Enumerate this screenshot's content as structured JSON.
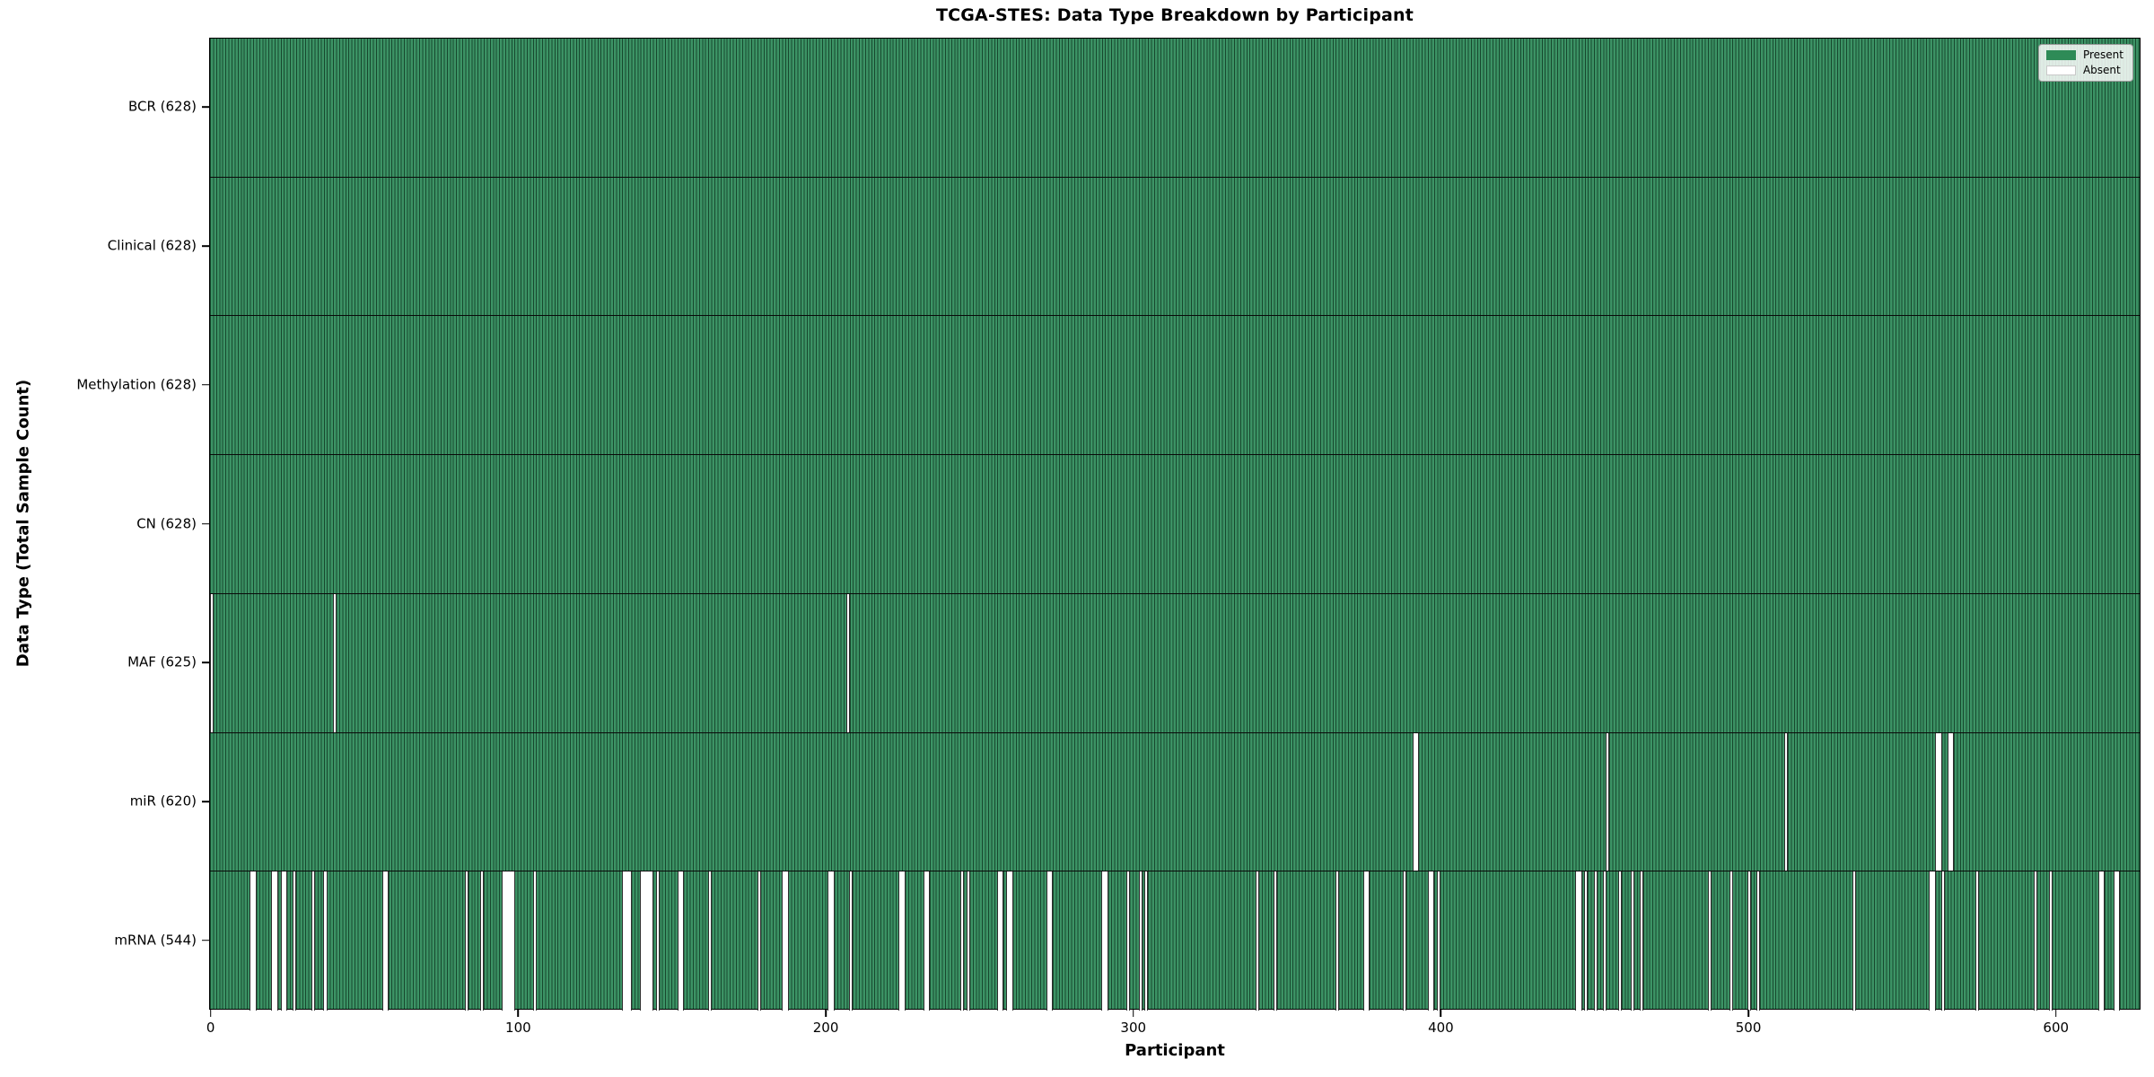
{
  "figure": {
    "title": "TCGA-STES: Data Type Breakdown by Participant",
    "xlabel": "Participant",
    "ylabel": "Data Type (Total Sample Count)"
  },
  "legend": {
    "items": [
      {
        "key": "present",
        "label": "Present",
        "color": "#2E8B57",
        "edge": "#2E8B57"
      },
      {
        "key": "absent",
        "label": "Absent",
        "color": "#FFFFFF",
        "edge": "#c8c8c8"
      }
    ]
  },
  "chart_data": {
    "type": "heatmap",
    "title": "TCGA-STES: Data Type Breakdown by Participant",
    "xlabel": "Participant",
    "ylabel": "Data Type (Total Sample Count)",
    "legend_entries": [
      "Present",
      "Absent"
    ],
    "legend_position": "upper right",
    "grid": false,
    "n_participants": 628,
    "x_axis": {
      "min": -0.5,
      "max": 627.5,
      "ticks": [
        0,
        100,
        200,
        300,
        400,
        500,
        600
      ]
    },
    "colors": {
      "present": "#2E8B57",
      "present_stripe_fill": "#3C9365",
      "bar_edge": "#17482E",
      "absent": "#FFFFFF",
      "row_separator": "#0a0a0a"
    },
    "rows": [
      {
        "key": "bcr",
        "label": "BCR (628)",
        "data_type": "BCR",
        "total_count": 628,
        "absent_participants": []
      },
      {
        "key": "clinical",
        "label": "Clinical (628)",
        "data_type": "Clinical",
        "total_count": 628,
        "absent_participants": []
      },
      {
        "key": "methylation",
        "label": "Methylation (628)",
        "data_type": "Methylation",
        "total_count": 628,
        "absent_participants": []
      },
      {
        "key": "cn",
        "label": "CN (628)",
        "data_type": "CN",
        "total_count": 628,
        "absent_participants": []
      },
      {
        "key": "maf",
        "label": "MAF (625)",
        "data_type": "MAF",
        "total_count": 625,
        "absent_participants": [
          0,
          40,
          207
        ]
      },
      {
        "key": "mir",
        "label": "miR (620)",
        "data_type": "miR",
        "total_count": 620,
        "absent_participants": [
          391,
          392,
          454,
          512,
          561,
          562,
          565,
          566
        ]
      },
      {
        "key": "mrna",
        "label": "mRNA (544)",
        "data_type": "mRNA",
        "total_count": 544,
        "absent_participants": [
          13,
          14,
          20,
          21,
          23,
          24,
          27,
          33,
          37,
          56,
          57,
          83,
          88,
          95,
          96,
          97,
          98,
          105,
          134,
          135,
          136,
          140,
          141,
          142,
          143,
          145,
          152,
          153,
          162,
          178,
          186,
          187,
          201,
          202,
          208,
          224,
          225,
          232,
          233,
          244,
          246,
          256,
          257,
          259,
          260,
          272,
          273,
          290,
          291,
          298,
          302,
          304,
          340,
          346,
          366,
          375,
          376,
          388,
          396,
          397,
          399,
          444,
          445,
          447,
          450,
          453,
          458,
          462,
          465,
          487,
          494,
          500,
          503,
          534,
          559,
          560,
          563,
          574,
          593,
          598,
          614,
          615,
          619,
          620
        ]
      }
    ]
  }
}
